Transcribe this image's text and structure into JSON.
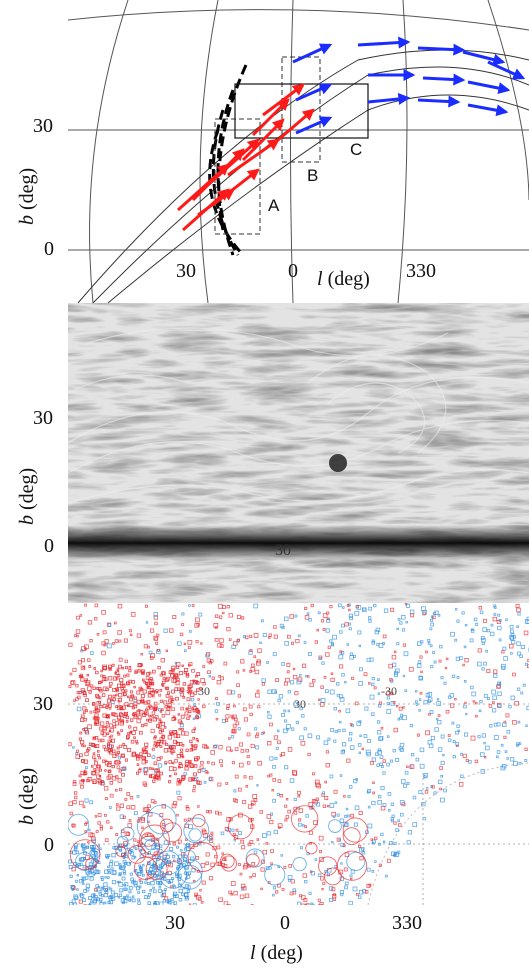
{
  "panels": {
    "top": {
      "ylabel": {
        "var": "b",
        "unit": "(deg)"
      },
      "xlabel": {
        "var": "l",
        "unit": "(deg)"
      },
      "yticks": [
        "30",
        "0"
      ],
      "xticks": [
        "30",
        "0",
        "330"
      ],
      "boxes": {
        "a": "A",
        "b": "B",
        "c": "C"
      },
      "arrow_colors": {
        "red": "#ff1a1a",
        "blue": "#1a2cff"
      }
    },
    "middle": {
      "ylabel": {
        "var": "b",
        "unit": "(deg)"
      },
      "yticks": [
        "30",
        "0"
      ],
      "center_tick": "30"
    },
    "bottom": {
      "ylabel": {
        "var": "b",
        "unit": "(deg)"
      },
      "xlabel": {
        "var": "l",
        "unit": "(deg)"
      },
      "yticks": [
        "30",
        "0"
      ],
      "xticks": [
        "30",
        "0",
        "330"
      ],
      "inner_ticks": [
        "30",
        "-30",
        "30"
      ],
      "point_colors": {
        "red": "#e8262b",
        "blue": "#2f8fe0"
      }
    }
  }
}
